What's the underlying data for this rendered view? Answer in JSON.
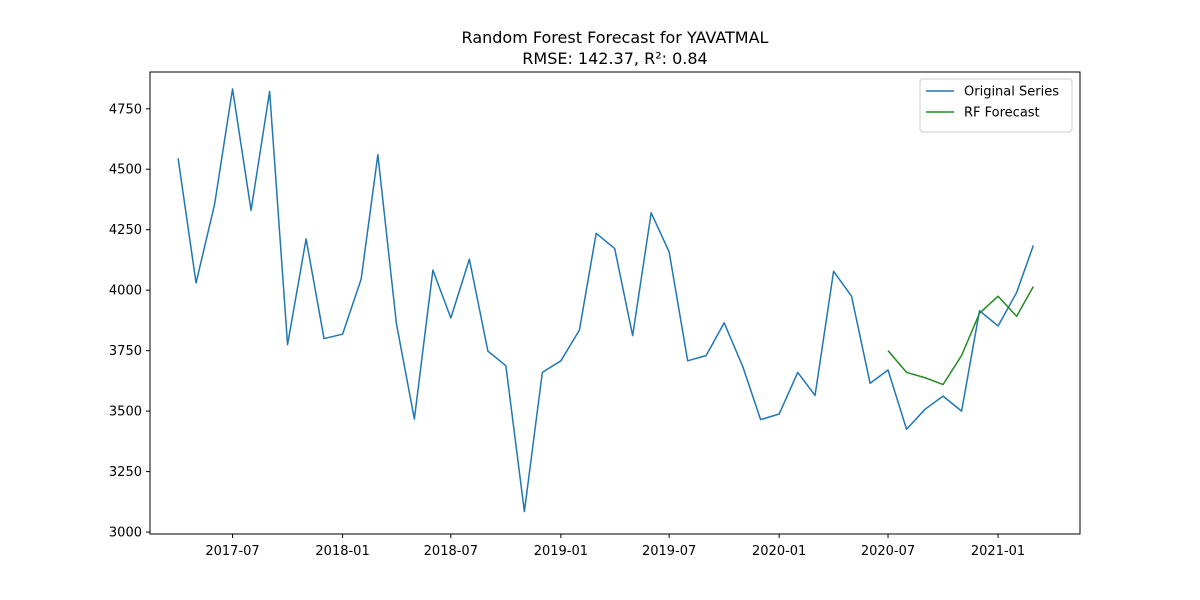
{
  "chart_data": {
    "type": "line",
    "title": "Random Forest Forecast for YAVATMAL",
    "subtitle": "RMSE: 142.37, R²: 0.84",
    "xlabel": "",
    "ylabel": "",
    "xlim": [
      "2017-02-13",
      "2021-05-18"
    ],
    "ylim": [
      2992,
      4902
    ],
    "x_ticks": [
      "2017-07",
      "2018-01",
      "2018-07",
      "2019-01",
      "2019-07",
      "2020-01",
      "2020-07",
      "2021-01"
    ],
    "y_ticks": [
      3000,
      3250,
      3500,
      3750,
      4000,
      4250,
      4500,
      4750
    ],
    "grid": false,
    "legend_position": "top-right",
    "series": [
      {
        "name": "Original Series",
        "color": "#1f77b4",
        "x": [
          "2017-04",
          "2017-05",
          "2017-06",
          "2017-07",
          "2017-08",
          "2017-09",
          "2017-10",
          "2017-11",
          "2017-12",
          "2018-01",
          "2018-02",
          "2018-03",
          "2018-04",
          "2018-05",
          "2018-06",
          "2018-07",
          "2018-08",
          "2018-09",
          "2018-10",
          "2018-11",
          "2018-12",
          "2019-01",
          "2019-02",
          "2019-03",
          "2019-04",
          "2019-05",
          "2019-06",
          "2019-07",
          "2019-08",
          "2019-09",
          "2019-10",
          "2019-11",
          "2019-12",
          "2020-01",
          "2020-02",
          "2020-03",
          "2020-04",
          "2020-05",
          "2020-06",
          "2020-07",
          "2020-08",
          "2020-09",
          "2020-10",
          "2020-11",
          "2020-12",
          "2021-01",
          "2021-02",
          "2021-03"
        ],
        "values": [
          4545,
          4030,
          4355,
          4832,
          4330,
          4822,
          3775,
          4212,
          3800,
          3818,
          4045,
          4560,
          3862,
          3467,
          4083,
          3885,
          4128,
          3748,
          3688,
          3085,
          3660,
          3708,
          3835,
          4235,
          4172,
          3812,
          4320,
          4158,
          3708,
          3730,
          3865,
          3685,
          3465,
          3488,
          3660,
          3565,
          4078,
          3975,
          3615,
          3670,
          3425,
          3508,
          3562,
          3500,
          3915,
          3852,
          3990,
          4185
        ]
      },
      {
        "name": "RF Forecast",
        "color": "#228b22",
        "x": [
          "2020-07",
          "2020-08",
          "2020-09",
          "2020-10",
          "2020-11",
          "2020-12",
          "2021-01",
          "2021-02",
          "2021-03"
        ],
        "values": [
          3750,
          3660,
          3638,
          3610,
          3730,
          3905,
          3975,
          3892,
          4015
        ]
      }
    ]
  }
}
